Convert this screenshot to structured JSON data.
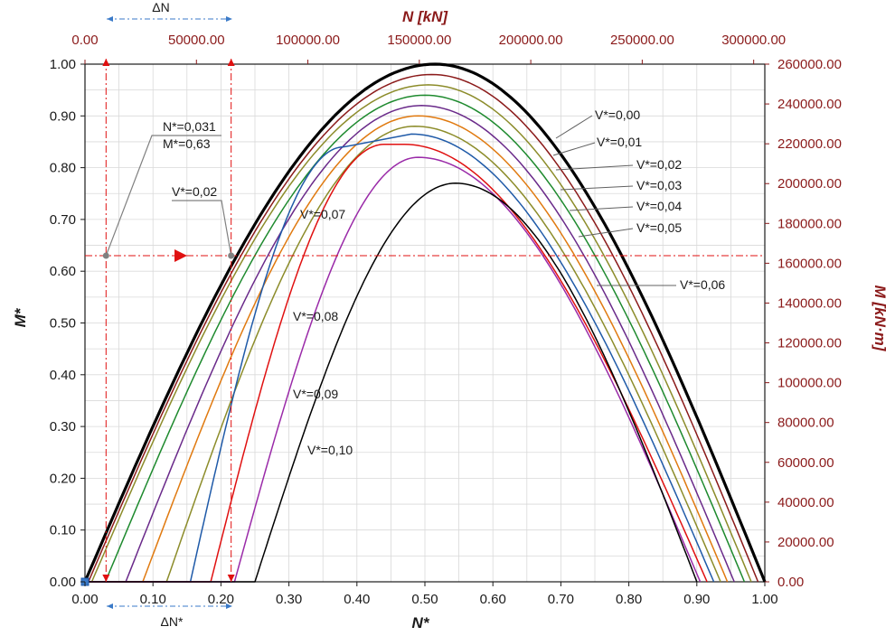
{
  "chart_data": {
    "type": "line",
    "xlabel": "N*",
    "ylabel": "M*",
    "x2label": "N [kN]",
    "y2label": "M [kN·m]",
    "xlim": [
      0,
      1
    ],
    "ylim": [
      0,
      1
    ],
    "x2lim": [
      0,
      305000
    ],
    "y2lim": [
      0,
      260000
    ],
    "x_ticks": [
      0,
      0.1,
      0.2,
      0.3,
      0.4,
      0.5,
      0.6,
      0.7,
      0.8,
      0.9,
      1.0
    ],
    "x_tick_labels": [
      "0.00",
      "0.10",
      "0.20",
      "0.30",
      "0.40",
      "0.50",
      "0.60",
      "0.70",
      "0.80",
      "0.90",
      "1.00"
    ],
    "y_ticks": [
      0,
      0.1,
      0.2,
      0.3,
      0.4,
      0.5,
      0.6,
      0.7,
      0.8,
      0.9,
      1.0
    ],
    "y_tick_labels": [
      "0.00",
      "0.10",
      "0.20",
      "0.30",
      "0.40",
      "0.50",
      "0.60",
      "0.70",
      "0.80",
      "0.90",
      "1.00"
    ],
    "x2_ticks": [
      0,
      50000,
      100000,
      150000,
      200000,
      250000,
      300000
    ],
    "x2_tick_labels": [
      "0.00",
      "50000.00",
      "100000.00",
      "150000.00",
      "200000.00",
      "250000.00",
      "300000.00"
    ],
    "y2_ticks": [
      0,
      20000,
      40000,
      60000,
      80000,
      100000,
      120000,
      140000,
      160000,
      180000,
      200000,
      220000,
      240000,
      260000
    ],
    "y2_tick_labels": [
      "0.00",
      "20000.00",
      "40000.00",
      "60000.00",
      "80000.00",
      "100000.00",
      "120000.00",
      "140000.00",
      "160000.00",
      "180000.00",
      "200000.00",
      "220000.00",
      "240000.00",
      "260000.00"
    ],
    "grid": true,
    "series": [
      {
        "name": "V*=0,00",
        "color": "#000000",
        "width": 3.2,
        "x0": 0.0,
        "peak_x": 0.515,
        "peak_y": 1.0,
        "x1": 1.0,
        "flat_y": 0.0
      },
      {
        "name": "V*=0,01",
        "color": "#8b1a1a",
        "width": 1.5,
        "x0": 0.005,
        "peak_x": 0.51,
        "peak_y": 0.98,
        "x1": 0.99,
        "flat_y": 0.0
      },
      {
        "name": "V*=0,02",
        "color": "#8c8c2a",
        "width": 1.5,
        "x0": 0.01,
        "peak_x": 0.505,
        "peak_y": 0.96,
        "x1": 0.98,
        "flat_y": 0.0
      },
      {
        "name": "V*=0,03",
        "color": "#1e8a2e",
        "width": 1.5,
        "x0": 0.03,
        "peak_x": 0.5,
        "peak_y": 0.94,
        "x1": 0.97,
        "flat_y": 0.0
      },
      {
        "name": "V*=0,04",
        "color": "#6a2a8a",
        "width": 1.5,
        "x0": 0.06,
        "peak_x": 0.495,
        "peak_y": 0.92,
        "x1": 0.955,
        "flat_y": 0.0
      },
      {
        "name": "V*=0,05",
        "color": "#e07a10",
        "width": 1.5,
        "x0": 0.085,
        "peak_x": 0.49,
        "peak_y": 0.9,
        "x1": 0.945,
        "flat_y": 0.0
      },
      {
        "name": "V*=0,06",
        "color": "#8c8c2a",
        "width": 1.5,
        "x0": 0.12,
        "peak_x": 0.485,
        "peak_y": 0.88,
        "x1": 0.935,
        "flat_y": 0.0
      },
      {
        "name": "V*=0,07",
        "color": "#1f5aa8",
        "width": 1.5,
        "x0": 0.155,
        "peak_x": 0.38,
        "peak_y": 0.84,
        "plateau_x": 0.48,
        "peak2_y": 0.865,
        "x1": 0.925,
        "flat_y": 0.0
      },
      {
        "name": "V*=0,08",
        "color": "#e01010",
        "width": 1.5,
        "x0": 0.185,
        "peak_x": 0.44,
        "peak_y": 0.845,
        "plateau_x": 0.47,
        "x1": 0.915,
        "flat_y": 0.0
      },
      {
        "name": "V*=0,09",
        "color": "#9a2aa8",
        "width": 1.5,
        "x0": 0.22,
        "peak_x": 0.49,
        "peak_y": 0.82,
        "x1": 0.905,
        "flat_y": 0.0
      },
      {
        "name": "V*=0,10",
        "color": "#000000",
        "width": 1.5,
        "x0": 0.25,
        "peak_x": 0.545,
        "peak_y": 0.77,
        "x1": 0.9,
        "flat_y": 0.0
      }
    ],
    "annotations": {
      "point_label_1": "N*=0,031",
      "point_label_2": "M*=0,63",
      "point_label_v": "V*=0,02",
      "point_N": 0.031,
      "point_M": 0.63,
      "point2_N": 0.215,
      "delta_n_top": "ΔN",
      "delta_n_bottom": "ΔN*"
    }
  },
  "labels": {
    "axis_bottom": "N*",
    "axis_left": "M*",
    "axis_top": "N [kN]",
    "axis_right": "M [kN·m]",
    "v000": "V*=0,00",
    "v001": "V*=0,01",
    "v002": "V*=0,02",
    "v003": "V*=0,03",
    "v004": "V*=0,04",
    "v005": "V*=0,05",
    "v006": "V*=0,06",
    "v007": "V*=0,07",
    "v008": "V*=0,08",
    "v009": "V*=0,09",
    "v010": "V*=0,10",
    "pt_n": "N*=0,031",
    "pt_m": "M*=0,63",
    "pt_v": "V*=0,02",
    "dn_top": "ΔN",
    "dn_bottom": "ΔN*"
  },
  "colors": {
    "grid": "#d9d9d9",
    "dark_red": "#8b1a1a",
    "red": "#e01010",
    "blue_dash": "#3a7ac8"
  }
}
